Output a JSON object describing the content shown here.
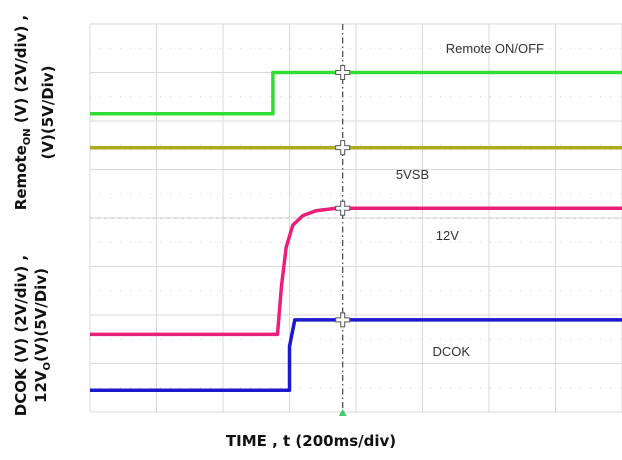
{
  "chart_data": {
    "type": "line",
    "title": "",
    "xlabel": "TIME , t (200ms/div)",
    "ylabel_top": {
      "line1_main": "Remote",
      "line1_sub": "ON",
      "line1_rest": " (V) (2V/div) ,",
      "line2": "(V)(5V/Div)"
    },
    "ylabel_bottom": {
      "line1": "DCOK (V) (2V/div) ,",
      "line2_main": "12V",
      "line2_sub": "O",
      "line2_rest": "(V)(5V/Div)"
    },
    "x_divisions": 8,
    "y_divisions": 8,
    "xlim": [
      0,
      8
    ],
    "ylim": [
      0,
      8
    ],
    "trigger_position_div": 3.8,
    "series": [
      {
        "name": "Remote ON/OFF",
        "color": "#33dd33",
        "x": [
          0,
          2.75,
          2.75,
          8
        ],
        "y": [
          6.15,
          6.15,
          7.0,
          7.0
        ]
      },
      {
        "name": "5VSB",
        "color": "#aaaa22",
        "x": [
          0,
          8
        ],
        "y": [
          5.45,
          5.45
        ]
      },
      {
        "name": "12V",
        "color": "#e8207a",
        "x": [
          0,
          2.82,
          2.88,
          2.95,
          3.05,
          3.2,
          3.4,
          3.7,
          8
        ],
        "y": [
          1.6,
          1.6,
          2.6,
          3.4,
          3.85,
          4.05,
          4.15,
          4.2,
          4.2
        ]
      },
      {
        "name": "DCOK",
        "color": "#1a1acc",
        "x": [
          0,
          3.0,
          3.0,
          3.08,
          8
        ],
        "y": [
          0.45,
          0.45,
          1.35,
          1.9,
          1.9
        ]
      }
    ],
    "annotations": [
      {
        "text": "Remote ON/OFF",
        "x": 5.35,
        "y": 7.4
      },
      {
        "text": "5VSB",
        "x": 4.6,
        "y": 4.8
      },
      {
        "text": "12V",
        "x": 5.2,
        "y": 3.55
      },
      {
        "text": "DCOK",
        "x": 5.15,
        "y": 1.15
      }
    ]
  }
}
